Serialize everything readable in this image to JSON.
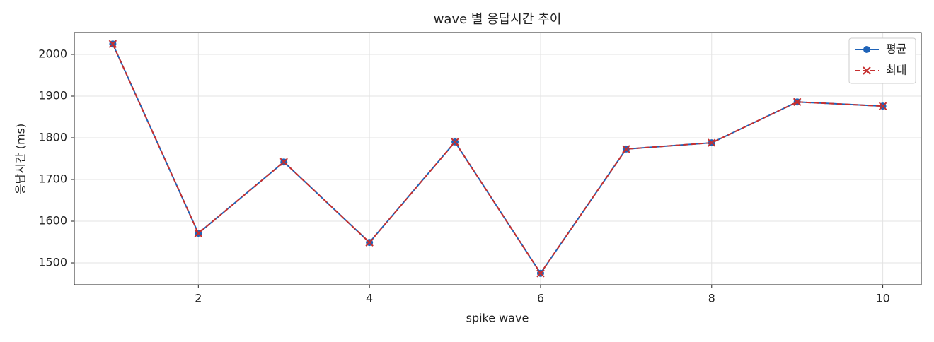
{
  "chart_data": {
    "type": "line",
    "title": "wave 별 응답시간 추이",
    "x_label": "spike wave",
    "y_label": "응답시간 (ms)",
    "x": [
      1,
      2,
      3,
      4,
      5,
      6,
      7,
      8,
      9,
      10
    ],
    "series": [
      {
        "name": "평균",
        "color": "#1f63b8",
        "linestyle": "solid",
        "marker": "o",
        "values": [
          2025,
          1571,
          1742,
          1549,
          1790,
          1475,
          1773,
          1788,
          1886,
          1876
        ]
      },
      {
        "name": "최대",
        "color": "#c62f2f",
        "linestyle": "dashed",
        "marker": "x",
        "values": [
          2025,
          1571,
          1742,
          1549,
          1790,
          1475,
          1773,
          1788,
          1886,
          1876
        ]
      }
    ],
    "xlim": [
      0.55,
      10.45
    ],
    "xticks": [
      2,
      4,
      6,
      8,
      10
    ],
    "ylim": [
      1447.5,
      2052.5
    ],
    "yticks": [
      1500,
      1600,
      1700,
      1800,
      1900,
      2000
    ],
    "grid": true,
    "legend": "upper right"
  }
}
